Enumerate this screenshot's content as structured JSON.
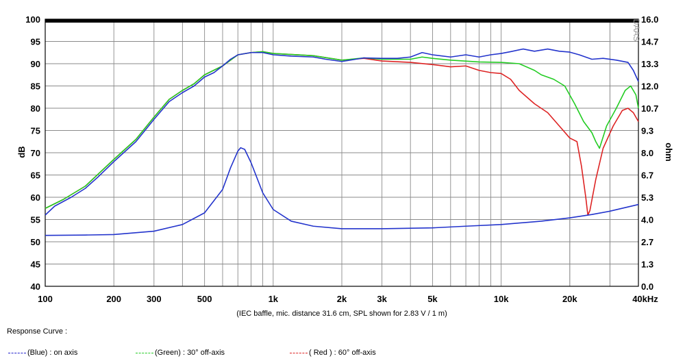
{
  "chart_data": {
    "type": "line",
    "xlabel": "(IEC baffle, mic. distance 31.6 cm, SPL shown for 2.83 V / 1 m)",
    "ylabel": "dB",
    "y2label": "ohm",
    "watermark": "DAAS",
    "x_scale": "log",
    "xlim": [
      100,
      40000
    ],
    "ylim": [
      40,
      100
    ],
    "y2lim": [
      0,
      16
    ],
    "x_ticks": [
      {
        "value": 100,
        "label": "100"
      },
      {
        "value": 200,
        "label": "200"
      },
      {
        "value": 300,
        "label": "300"
      },
      {
        "value": 500,
        "label": "500"
      },
      {
        "value": 1000,
        "label": "1k"
      },
      {
        "value": 2000,
        "label": "2k"
      },
      {
        "value": 3000,
        "label": "3k"
      },
      {
        "value": 5000,
        "label": "5k"
      },
      {
        "value": 10000,
        "label": "10k"
      },
      {
        "value": 20000,
        "label": "20k"
      },
      {
        "value": 40000,
        "label": "40kHz"
      }
    ],
    "y_ticks": [
      "40",
      "45",
      "50",
      "55",
      "60",
      "65",
      "70",
      "75",
      "80",
      "85",
      "90",
      "95",
      "100"
    ],
    "y2_ticks": [
      "0.0",
      "1.3",
      "2.7",
      "4.0",
      "5.3",
      "6.7",
      "8.0",
      "9.3",
      "10.7",
      "12.0",
      "13.3",
      "14.7",
      "16.0"
    ],
    "grid": true,
    "legend_title": "Response Curve :",
    "legend": [
      {
        "label": "(Blue)  : on axis",
        "color": "#2222cc"
      },
      {
        "label": "(Green) : 30° off-axis",
        "color": "#22cc22"
      },
      {
        "label": "( Red ) : 60° off-axis",
        "color": "#dd2222"
      }
    ],
    "series": [
      {
        "color": "#2233cc",
        "axis": "left",
        "points": [
          [
            100,
            56
          ],
          [
            110,
            58
          ],
          [
            130,
            60
          ],
          [
            150,
            62
          ],
          [
            170,
            64.5
          ],
          [
            200,
            68
          ],
          [
            250,
            72.5
          ],
          [
            300,
            77.5
          ],
          [
            350,
            81.5
          ],
          [
            400,
            83.5
          ],
          [
            450,
            85
          ],
          [
            500,
            87
          ],
          [
            550,
            88
          ],
          [
            600,
            89.5
          ],
          [
            650,
            91
          ],
          [
            700,
            92
          ],
          [
            800,
            92.5
          ],
          [
            900,
            92.5
          ],
          [
            1000,
            92
          ],
          [
            1200,
            91.7
          ],
          [
            1500,
            91.5
          ],
          [
            1700,
            91
          ],
          [
            2000,
            90.5
          ],
          [
            2300,
            91
          ],
          [
            2500,
            91.3
          ],
          [
            3000,
            91.2
          ],
          [
            3500,
            91.2
          ],
          [
            4000,
            91.5
          ],
          [
            4500,
            92.5
          ],
          [
            5000,
            92
          ],
          [
            6000,
            91.5
          ],
          [
            7000,
            92
          ],
          [
            8000,
            91.5
          ],
          [
            9000,
            92
          ],
          [
            10000,
            92.3
          ],
          [
            11000,
            92.7
          ],
          [
            12500,
            93.3
          ],
          [
            14000,
            92.8
          ],
          [
            16000,
            93.3
          ],
          [
            18000,
            92.8
          ],
          [
            20000,
            92.6
          ],
          [
            22000,
            92
          ],
          [
            25000,
            91
          ],
          [
            28000,
            91.2
          ],
          [
            32000,
            90.8
          ],
          [
            36000,
            90.3
          ],
          [
            38000,
            88.5
          ],
          [
            40000,
            86
          ]
        ]
      },
      {
        "color": "#22cc22",
        "axis": "left",
        "points": [
          [
            100,
            57.5
          ],
          [
            120,
            59.5
          ],
          [
            150,
            62.5
          ],
          [
            200,
            68.5
          ],
          [
            250,
            73
          ],
          [
            300,
            78
          ],
          [
            350,
            82
          ],
          [
            400,
            84
          ],
          [
            450,
            85.5
          ],
          [
            500,
            87.5
          ],
          [
            600,
            89.5
          ],
          [
            700,
            92
          ],
          [
            800,
            92.5
          ],
          [
            900,
            92.7
          ],
          [
            1000,
            92.3
          ],
          [
            1500,
            91.8
          ],
          [
            2000,
            90.8
          ],
          [
            2500,
            91.3
          ],
          [
            3000,
            91
          ],
          [
            4000,
            91
          ],
          [
            4500,
            91.5
          ],
          [
            5000,
            91.2
          ],
          [
            6000,
            90.8
          ],
          [
            8000,
            90.4
          ],
          [
            10000,
            90.3
          ],
          [
            12000,
            90
          ],
          [
            14000,
            88.5
          ],
          [
            15000,
            87.5
          ],
          [
            17000,
            86.5
          ],
          [
            19000,
            85
          ],
          [
            21000,
            81
          ],
          [
            23000,
            77
          ],
          [
            25000,
            74.5
          ],
          [
            26000,
            72.5
          ],
          [
            27000,
            71
          ],
          [
            29000,
            76
          ],
          [
            32000,
            80
          ],
          [
            35000,
            84
          ],
          [
            37000,
            85
          ],
          [
            39000,
            83
          ],
          [
            40000,
            80
          ]
        ]
      },
      {
        "color": "#dd2222",
        "axis": "left",
        "points": [
          [
            100,
            57.5
          ],
          [
            120,
            59.5
          ],
          [
            150,
            62.5
          ],
          [
            200,
            68.5
          ],
          [
            250,
            73
          ],
          [
            300,
            78
          ],
          [
            350,
            82
          ],
          [
            400,
            84
          ],
          [
            450,
            85.5
          ],
          [
            500,
            87.5
          ],
          [
            600,
            89.5
          ],
          [
            700,
            92
          ],
          [
            800,
            92.5
          ],
          [
            900,
            92.7
          ],
          [
            1000,
            92.3
          ],
          [
            1500,
            91.8
          ],
          [
            2000,
            90.8
          ],
          [
            2500,
            91.2
          ],
          [
            3000,
            90.6
          ],
          [
            4000,
            90.3
          ],
          [
            5000,
            89.8
          ],
          [
            6000,
            89.3
          ],
          [
            7000,
            89.5
          ],
          [
            8000,
            88.5
          ],
          [
            9000,
            88
          ],
          [
            10000,
            87.8
          ],
          [
            11000,
            86.5
          ],
          [
            12000,
            84
          ],
          [
            14000,
            81
          ],
          [
            16000,
            79
          ],
          [
            18000,
            76
          ],
          [
            20000,
            73.3
          ],
          [
            21500,
            72.5
          ],
          [
            22500,
            67
          ],
          [
            23500,
            60
          ],
          [
            24000,
            56
          ],
          [
            24500,
            57
          ],
          [
            26000,
            64
          ],
          [
            28000,
            71
          ],
          [
            31000,
            76
          ],
          [
            34000,
            79.5
          ],
          [
            36000,
            80
          ],
          [
            38000,
            79
          ],
          [
            40000,
            77
          ]
        ]
      },
      {
        "color": "#2233cc",
        "axis": "right",
        "points": [
          [
            100,
            3.05
          ],
          [
            150,
            3.07
          ],
          [
            200,
            3.1
          ],
          [
            300,
            3.3
          ],
          [
            400,
            3.7
          ],
          [
            500,
            4.4
          ],
          [
            600,
            5.8
          ],
          [
            650,
            7.1
          ],
          [
            700,
            8.1
          ],
          [
            720,
            8.3
          ],
          [
            750,
            8.2
          ],
          [
            800,
            7.4
          ],
          [
            900,
            5.6
          ],
          [
            1000,
            4.6
          ],
          [
            1200,
            3.9
          ],
          [
            1500,
            3.6
          ],
          [
            2000,
            3.45
          ],
          [
            3000,
            3.45
          ],
          [
            5000,
            3.5
          ],
          [
            7000,
            3.6
          ],
          [
            10000,
            3.7
          ],
          [
            15000,
            3.9
          ],
          [
            20000,
            4.1
          ],
          [
            25000,
            4.3
          ],
          [
            30000,
            4.5
          ],
          [
            40000,
            4.9
          ]
        ]
      }
    ]
  }
}
